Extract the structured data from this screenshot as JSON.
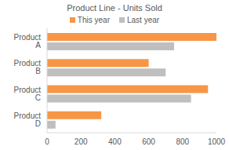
{
  "chart_data": {
    "type": "bar",
    "title": "Product Line - Units Sold",
    "orientation": "horizontal",
    "categories": [
      "Product A",
      "Product B",
      "Product C",
      "Product D"
    ],
    "series": [
      {
        "name": "This year",
        "color": "#f79646",
        "values": [
          1000,
          600,
          950,
          320
        ]
      },
      {
        "name": "Last year",
        "color": "#bfbfbf",
        "values": [
          750,
          700,
          850,
          50
        ]
      }
    ],
    "xlim": [
      0,
      1000
    ],
    "xticks": [
      0,
      200,
      400,
      600,
      800,
      1000
    ],
    "grid": false,
    "legend": "top"
  }
}
